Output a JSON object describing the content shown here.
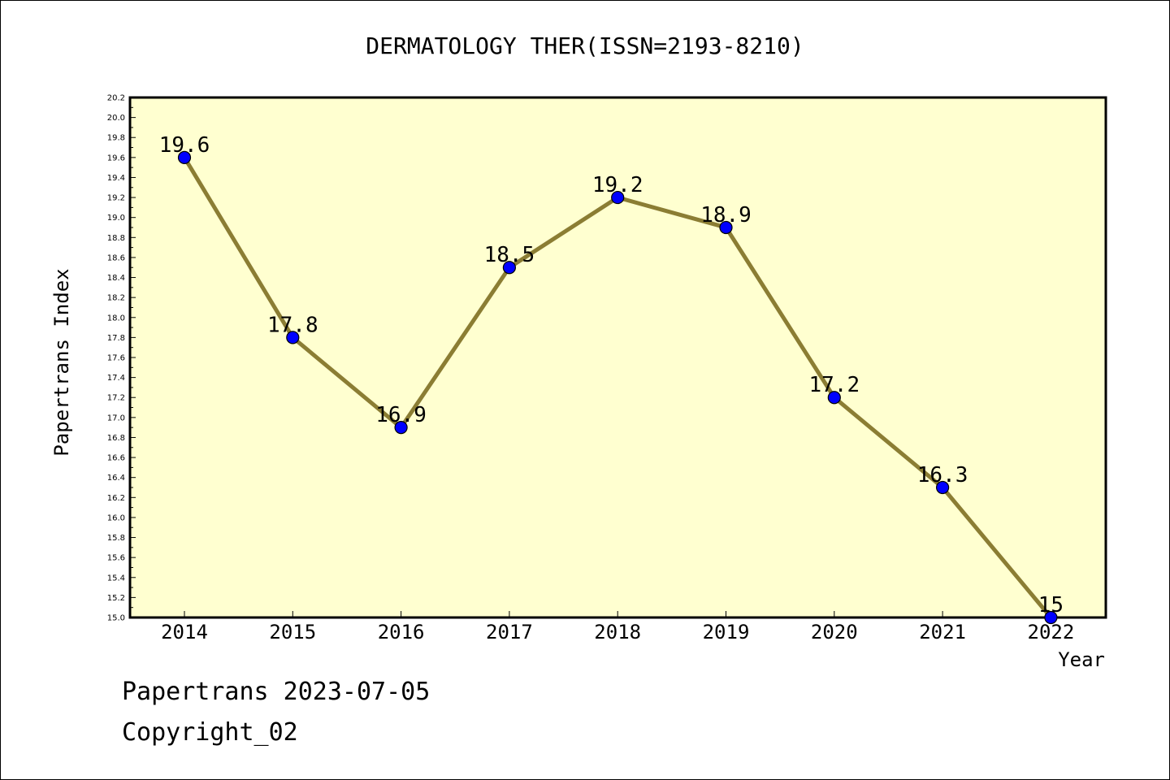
{
  "chart_data": {
    "type": "line",
    "title": "DERMATOLOGY THER(ISSN=2193-8210)",
    "xlabel": "Year",
    "ylabel": "Papertrans Index",
    "categories": [
      "2014",
      "2015",
      "2016",
      "2017",
      "2018",
      "2019",
      "2020",
      "2021",
      "2022"
    ],
    "values": [
      19.6,
      17.8,
      16.9,
      18.5,
      19.2,
      18.9,
      17.2,
      16.3,
      15.0
    ],
    "data_labels": [
      "19.6",
      "17.8",
      "16.9",
      "18.5",
      "19.2",
      "18.9",
      "17.2",
      "16.3",
      "15"
    ],
    "ylim": [
      15.0,
      20.2
    ],
    "yticks": [
      "15.0",
      "15.2",
      "15.4",
      "15.6",
      "15.8",
      "16.0",
      "16.2",
      "16.4",
      "16.6",
      "16.8",
      "17.0",
      "17.2",
      "17.4",
      "17.6",
      "17.8",
      "18.0",
      "18.2",
      "18.4",
      "18.6",
      "18.8",
      "19.0",
      "19.2",
      "19.4",
      "19.6",
      "19.8",
      "20.0",
      "20.2"
    ],
    "grid": false,
    "colors": {
      "plot_background": "#ffffd0",
      "line": "#8b7d33",
      "marker": "#0000ff"
    }
  },
  "footer": {
    "date_line": "Papertrans 2023-07-05",
    "copyright": "Copyright_02"
  }
}
